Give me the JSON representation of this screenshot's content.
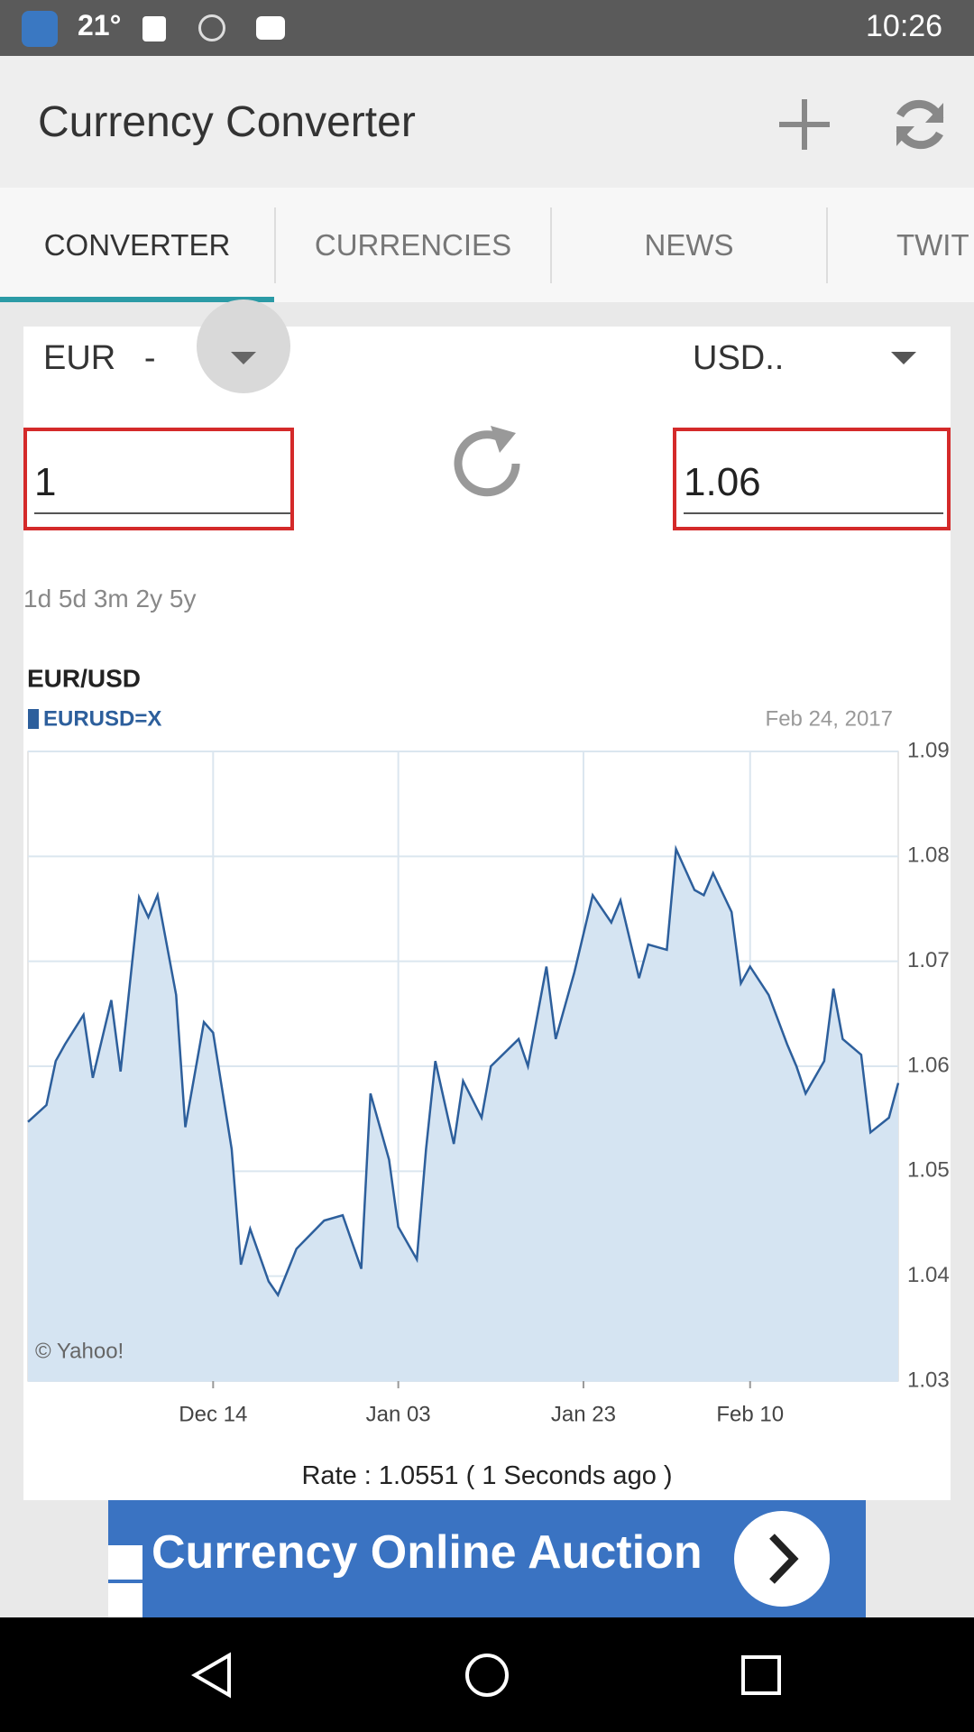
{
  "status": {
    "temperature": "21°",
    "time": "10:26"
  },
  "header": {
    "title": "Currency Converter"
  },
  "tabs": [
    "CONVERTER",
    "CURRENCIES",
    "NEWS",
    "TWIT"
  ],
  "converter": {
    "from": "EUR   -",
    "to": "USD..",
    "amount": "1",
    "result": "1.06",
    "ranges": "1d 5d 3m 2y 5y"
  },
  "chart_data": {
    "type": "area",
    "title": "EUR/USD",
    "subtitle": "Feb 24, 2017",
    "credit": "© Yahoo!",
    "series": [
      {
        "name": "EURUSD=X",
        "color": "#2d5f9c",
        "fill": "#d5e4f2",
        "x": [
          0,
          2,
          3,
          4,
          6,
          7,
          9,
          10,
          12,
          13,
          14,
          16,
          17,
          19,
          20,
          22,
          23,
          24,
          26,
          27,
          29,
          30,
          32,
          34,
          36,
          37,
          39,
          40,
          42,
          43,
          44,
          46,
          47,
          49,
          50,
          53,
          54,
          56,
          57,
          59,
          61,
          63,
          64,
          66,
          67,
          69,
          70,
          72,
          73,
          74,
          76,
          77,
          78,
          80,
          82,
          83,
          84,
          86,
          87,
          88,
          90,
          91,
          93,
          94
        ],
        "values": [
          1.0547,
          1.0563,
          1.0605,
          1.0621,
          1.0649,
          1.0589,
          1.0663,
          1.0595,
          1.0761,
          1.0742,
          1.0763,
          1.0668,
          1.0542,
          1.0642,
          1.0632,
          1.0521,
          1.0411,
          1.0445,
          1.0395,
          1.0382,
          1.0426,
          1.0435,
          1.0453,
          1.0458,
          1.0407,
          1.0574,
          1.0511,
          1.0447,
          1.0416,
          1.0521,
          1.0605,
          1.0526,
          1.0586,
          1.0551,
          1.06,
          1.0626,
          1.06,
          1.0695,
          1.0626,
          1.0689,
          1.0763,
          1.0737,
          1.0758,
          1.0684,
          1.0716,
          1.0711,
          1.0807,
          1.0768,
          1.0763,
          1.0784,
          1.0747,
          1.0679,
          1.0695,
          1.0668,
          1.0621,
          1.06,
          1.0574,
          1.0605,
          1.0674,
          1.0626,
          1.0611,
          1.0537,
          1.0551,
          1.0584
        ]
      }
    ],
    "xlim": [
      0,
      94
    ],
    "xticks": [
      {
        "value": 20,
        "label": "Dec 14"
      },
      {
        "value": 40,
        "label": "Jan 03"
      },
      {
        "value": 60,
        "label": "Jan 23"
      },
      {
        "value": 78,
        "label": "Feb 10"
      }
    ],
    "ylim": [
      1.03,
      1.09
    ],
    "yticks": [
      1.03,
      1.04,
      1.05,
      1.06,
      1.07,
      1.08,
      1.09
    ],
    "grid": true
  },
  "rate": "Rate : 1.0551 ( 1 Seconds ago )",
  "ad": {
    "text": "Currency Online Auction"
  }
}
